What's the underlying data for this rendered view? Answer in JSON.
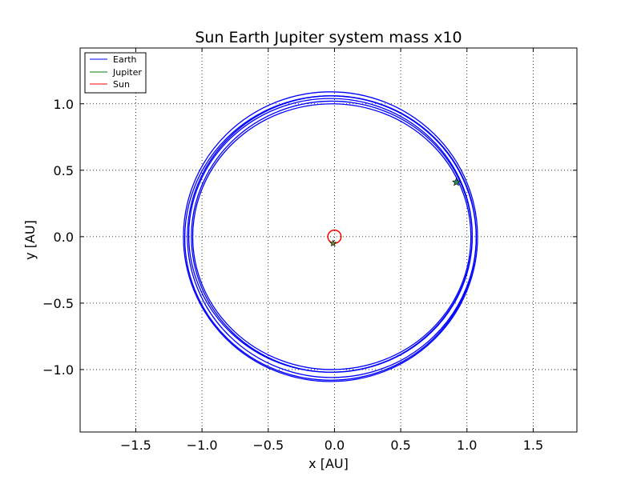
{
  "chart_data": {
    "type": "line",
    "title": "Sun Earth Jupiter system mass x10",
    "xlabel": "x [AU]",
    "ylabel": "y [AU]",
    "xlim": [
      -1.92,
      1.83
    ],
    "ylim": [
      -1.47,
      1.42
    ],
    "grid": true,
    "legend_position": "top-left",
    "x_ticks": [
      -1.5,
      -1.0,
      -0.5,
      0.0,
      0.5,
      1.0,
      1.5
    ],
    "x_tick_labels": [
      "−1.5",
      "−1.0",
      "−0.5",
      "0.0",
      "0.5",
      "1.0",
      "1.5"
    ],
    "y_ticks": [
      -1.0,
      -0.5,
      0.0,
      0.5,
      1.0
    ],
    "y_tick_labels": [
      "−1.0",
      "−0.5",
      "0.0",
      "0.5",
      "1.0"
    ],
    "series": [
      {
        "name": "Earth",
        "color": "#0000ff",
        "orbits": [
          {
            "cx": -0.02,
            "cy": 0.0,
            "rx": 1.05,
            "ry": 1.0
          },
          {
            "cx": -0.03,
            "cy": 0.01,
            "rx": 1.07,
            "ry": 1.03
          },
          {
            "cx": -0.02,
            "cy": 0.0,
            "rx": 1.09,
            "ry": 1.06
          },
          {
            "cx": -0.03,
            "cy": 0.0,
            "rx": 1.11,
            "ry": 1.09
          },
          {
            "cx": -0.02,
            "cy": 0.0,
            "rx": 1.06,
            "ry": 1.02
          },
          {
            "cx": -0.03,
            "cy": -0.01,
            "rx": 1.1,
            "ry": 1.07
          }
        ],
        "end_marker": {
          "x": 0.92,
          "y": 0.41
        }
      },
      {
        "name": "Jupiter",
        "color": "#008000",
        "end_marker": {
          "x": -0.01,
          "y": -0.05
        }
      },
      {
        "name": "Sun",
        "color": "#ff0000",
        "circle": {
          "cx": 0.0,
          "cy": 0.0,
          "r": 0.05
        }
      }
    ]
  }
}
